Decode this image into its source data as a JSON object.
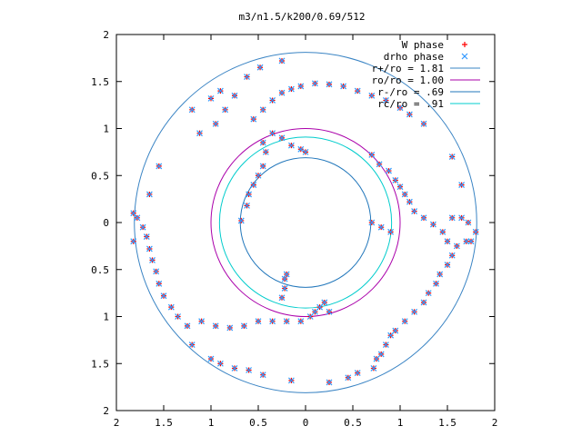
{
  "chart_data": {
    "type": "scatter",
    "title": "m3/n1.5/k200/0.69/512",
    "xlabel": "",
    "ylabel": "",
    "xlim": [
      -2,
      2
    ],
    "ylim": [
      -2,
      2
    ],
    "xticks": [
      {
        "v": -2,
        "label": "2"
      },
      {
        "v": -1.5,
        "label": "1.5"
      },
      {
        "v": -1,
        "label": "1"
      },
      {
        "v": -0.5,
        "label": "0.5"
      },
      {
        "v": 0,
        "label": "0"
      },
      {
        "v": 0.5,
        "label": "0.5"
      },
      {
        "v": 1,
        "label": "1"
      },
      {
        "v": 1.5,
        "label": "1.5"
      },
      {
        "v": 2,
        "label": "2"
      }
    ],
    "yticks": [
      {
        "v": 2,
        "label": "2"
      },
      {
        "v": 1.5,
        "label": "1.5"
      },
      {
        "v": 1,
        "label": "1"
      },
      {
        "v": 0.5,
        "label": "0.5"
      },
      {
        "v": 0,
        "label": "0"
      },
      {
        "v": -0.5,
        "label": "0.5"
      },
      {
        "v": -1,
        "label": "1"
      },
      {
        "v": -1.5,
        "label": "1.5"
      },
      {
        "v": -2,
        "label": "2"
      }
    ],
    "grid": false,
    "legend_position": "top-right",
    "circles": [
      {
        "name": "r+/ro = 1.81",
        "r": 1.81,
        "color": "#3a84c4"
      },
      {
        "name": "ro/ro = 1.00",
        "r": 1.0,
        "color": "#aa00aa"
      },
      {
        "name": "r-/ro = .69",
        "r": 0.69,
        "color": "#2277bb"
      },
      {
        "name": "rc/ro = .91",
        "r": 0.91,
        "color": "#00cccc"
      }
    ],
    "series": [
      {
        "name": "W phase",
        "marker": "plus",
        "color": "#ff0000"
      },
      {
        "name": "drho phase",
        "marker": "cross",
        "color": "#3399ff"
      }
    ],
    "phase_points": [
      [
        -1.82,
        0.1
      ],
      [
        -1.78,
        0.05
      ],
      [
        -1.72,
        -0.05
      ],
      [
        -1.68,
        -0.15
      ],
      [
        -1.65,
        -0.28
      ],
      [
        -1.62,
        -0.4
      ],
      [
        -1.58,
        -0.52
      ],
      [
        -1.82,
        -0.2
      ],
      [
        -1.55,
        -0.65
      ],
      [
        -1.5,
        -0.78
      ],
      [
        -1.42,
        -0.9
      ],
      [
        -1.35,
        -1.0
      ],
      [
        -1.25,
        -1.1
      ],
      [
        -1.1,
        -1.05
      ],
      [
        -0.95,
        -1.1
      ],
      [
        -0.8,
        -1.12
      ],
      [
        -0.65,
        -1.1
      ],
      [
        -0.5,
        -1.05
      ],
      [
        -0.35,
        -1.05
      ],
      [
        -0.2,
        -1.05
      ],
      [
        -0.05,
        -1.05
      ],
      [
        0.05,
        -1.0
      ],
      [
        0.1,
        -0.95
      ],
      [
        0.15,
        -0.9
      ],
      [
        0.2,
        -0.85
      ],
      [
        0.25,
        -0.95
      ],
      [
        -0.25,
        -0.8
      ],
      [
        -0.22,
        -0.7
      ],
      [
        -0.22,
        -0.6
      ],
      [
        -0.2,
        -0.55
      ],
      [
        -1.0,
        -1.45
      ],
      [
        -0.9,
        -1.5
      ],
      [
        -0.75,
        -1.55
      ],
      [
        -0.6,
        -1.57
      ],
      [
        -0.45,
        -1.62
      ],
      [
        -0.15,
        -1.68
      ],
      [
        -1.2,
        -1.3
      ],
      [
        0.8,
        -1.4
      ],
      [
        0.75,
        -1.45
      ],
      [
        0.72,
        -1.55
      ],
      [
        0.85,
        -1.3
      ],
      [
        0.9,
        -1.2
      ],
      [
        0.95,
        -1.15
      ],
      [
        1.05,
        -1.05
      ],
      [
        1.15,
        -0.95
      ],
      [
        1.25,
        -0.85
      ],
      [
        1.3,
        -0.75
      ],
      [
        1.38,
        -0.65
      ],
      [
        1.42,
        -0.55
      ],
      [
        1.5,
        -0.45
      ],
      [
        1.55,
        -0.35
      ],
      [
        1.6,
        -0.25
      ],
      [
        1.7,
        -0.2
      ],
      [
        0.25,
        -1.7
      ],
      [
        0.55,
        -1.6
      ],
      [
        0.45,
        -1.65
      ],
      [
        0.7,
        0.72
      ],
      [
        0.78,
        0.62
      ],
      [
        0.88,
        0.55
      ],
      [
        0.95,
        0.45
      ],
      [
        1.0,
        0.38
      ],
      [
        1.05,
        0.3
      ],
      [
        1.1,
        0.22
      ],
      [
        1.15,
        0.12
      ],
      [
        1.25,
        0.05
      ],
      [
        1.35,
        -0.02
      ],
      [
        1.45,
        -0.1
      ],
      [
        1.5,
        -0.2
      ],
      [
        0.7,
        0.0
      ],
      [
        0.8,
        -0.05
      ],
      [
        0.9,
        -0.1
      ],
      [
        1.55,
        0.05
      ],
      [
        1.65,
        0.05
      ],
      [
        1.72,
        0.0
      ],
      [
        1.8,
        -0.1
      ],
      [
        1.75,
        -0.2
      ],
      [
        1.55,
        0.7
      ],
      [
        1.65,
        0.4
      ],
      [
        -1.12,
        0.95
      ],
      [
        -0.95,
        1.05
      ],
      [
        -0.85,
        1.2
      ],
      [
        -0.75,
        1.35
      ],
      [
        -0.62,
        1.55
      ],
      [
        -0.48,
        1.65
      ],
      [
        -0.25,
        1.72
      ],
      [
        -1.55,
        0.6
      ],
      [
        -1.65,
        0.3
      ],
      [
        -1.2,
        1.2
      ],
      [
        -1.0,
        1.32
      ],
      [
        -0.9,
        1.4
      ],
      [
        -0.45,
        0.85
      ],
      [
        -0.42,
        0.75
      ],
      [
        -0.45,
        0.6
      ],
      [
        -0.5,
        0.5
      ],
      [
        -0.55,
        0.4
      ],
      [
        -0.6,
        0.3
      ],
      [
        -0.62,
        0.18
      ],
      [
        -0.68,
        0.02
      ],
      [
        -0.55,
        1.1
      ],
      [
        -0.45,
        1.2
      ],
      [
        -0.35,
        1.3
      ],
      [
        -0.25,
        1.38
      ],
      [
        -0.15,
        1.42
      ],
      [
        -0.05,
        1.45
      ],
      [
        0.1,
        1.48
      ],
      [
        0.25,
        1.47
      ],
      [
        0.4,
        1.45
      ],
      [
        0.55,
        1.4
      ],
      [
        0.7,
        1.35
      ],
      [
        0.85,
        1.3
      ],
      [
        1.0,
        1.22
      ],
      [
        1.1,
        1.15
      ],
      [
        1.25,
        1.05
      ],
      [
        -0.35,
        0.95
      ],
      [
        -0.25,
        0.9
      ],
      [
        -0.15,
        0.82
      ],
      [
        -0.05,
        0.78
      ],
      [
        0.0,
        0.75
      ]
    ]
  }
}
